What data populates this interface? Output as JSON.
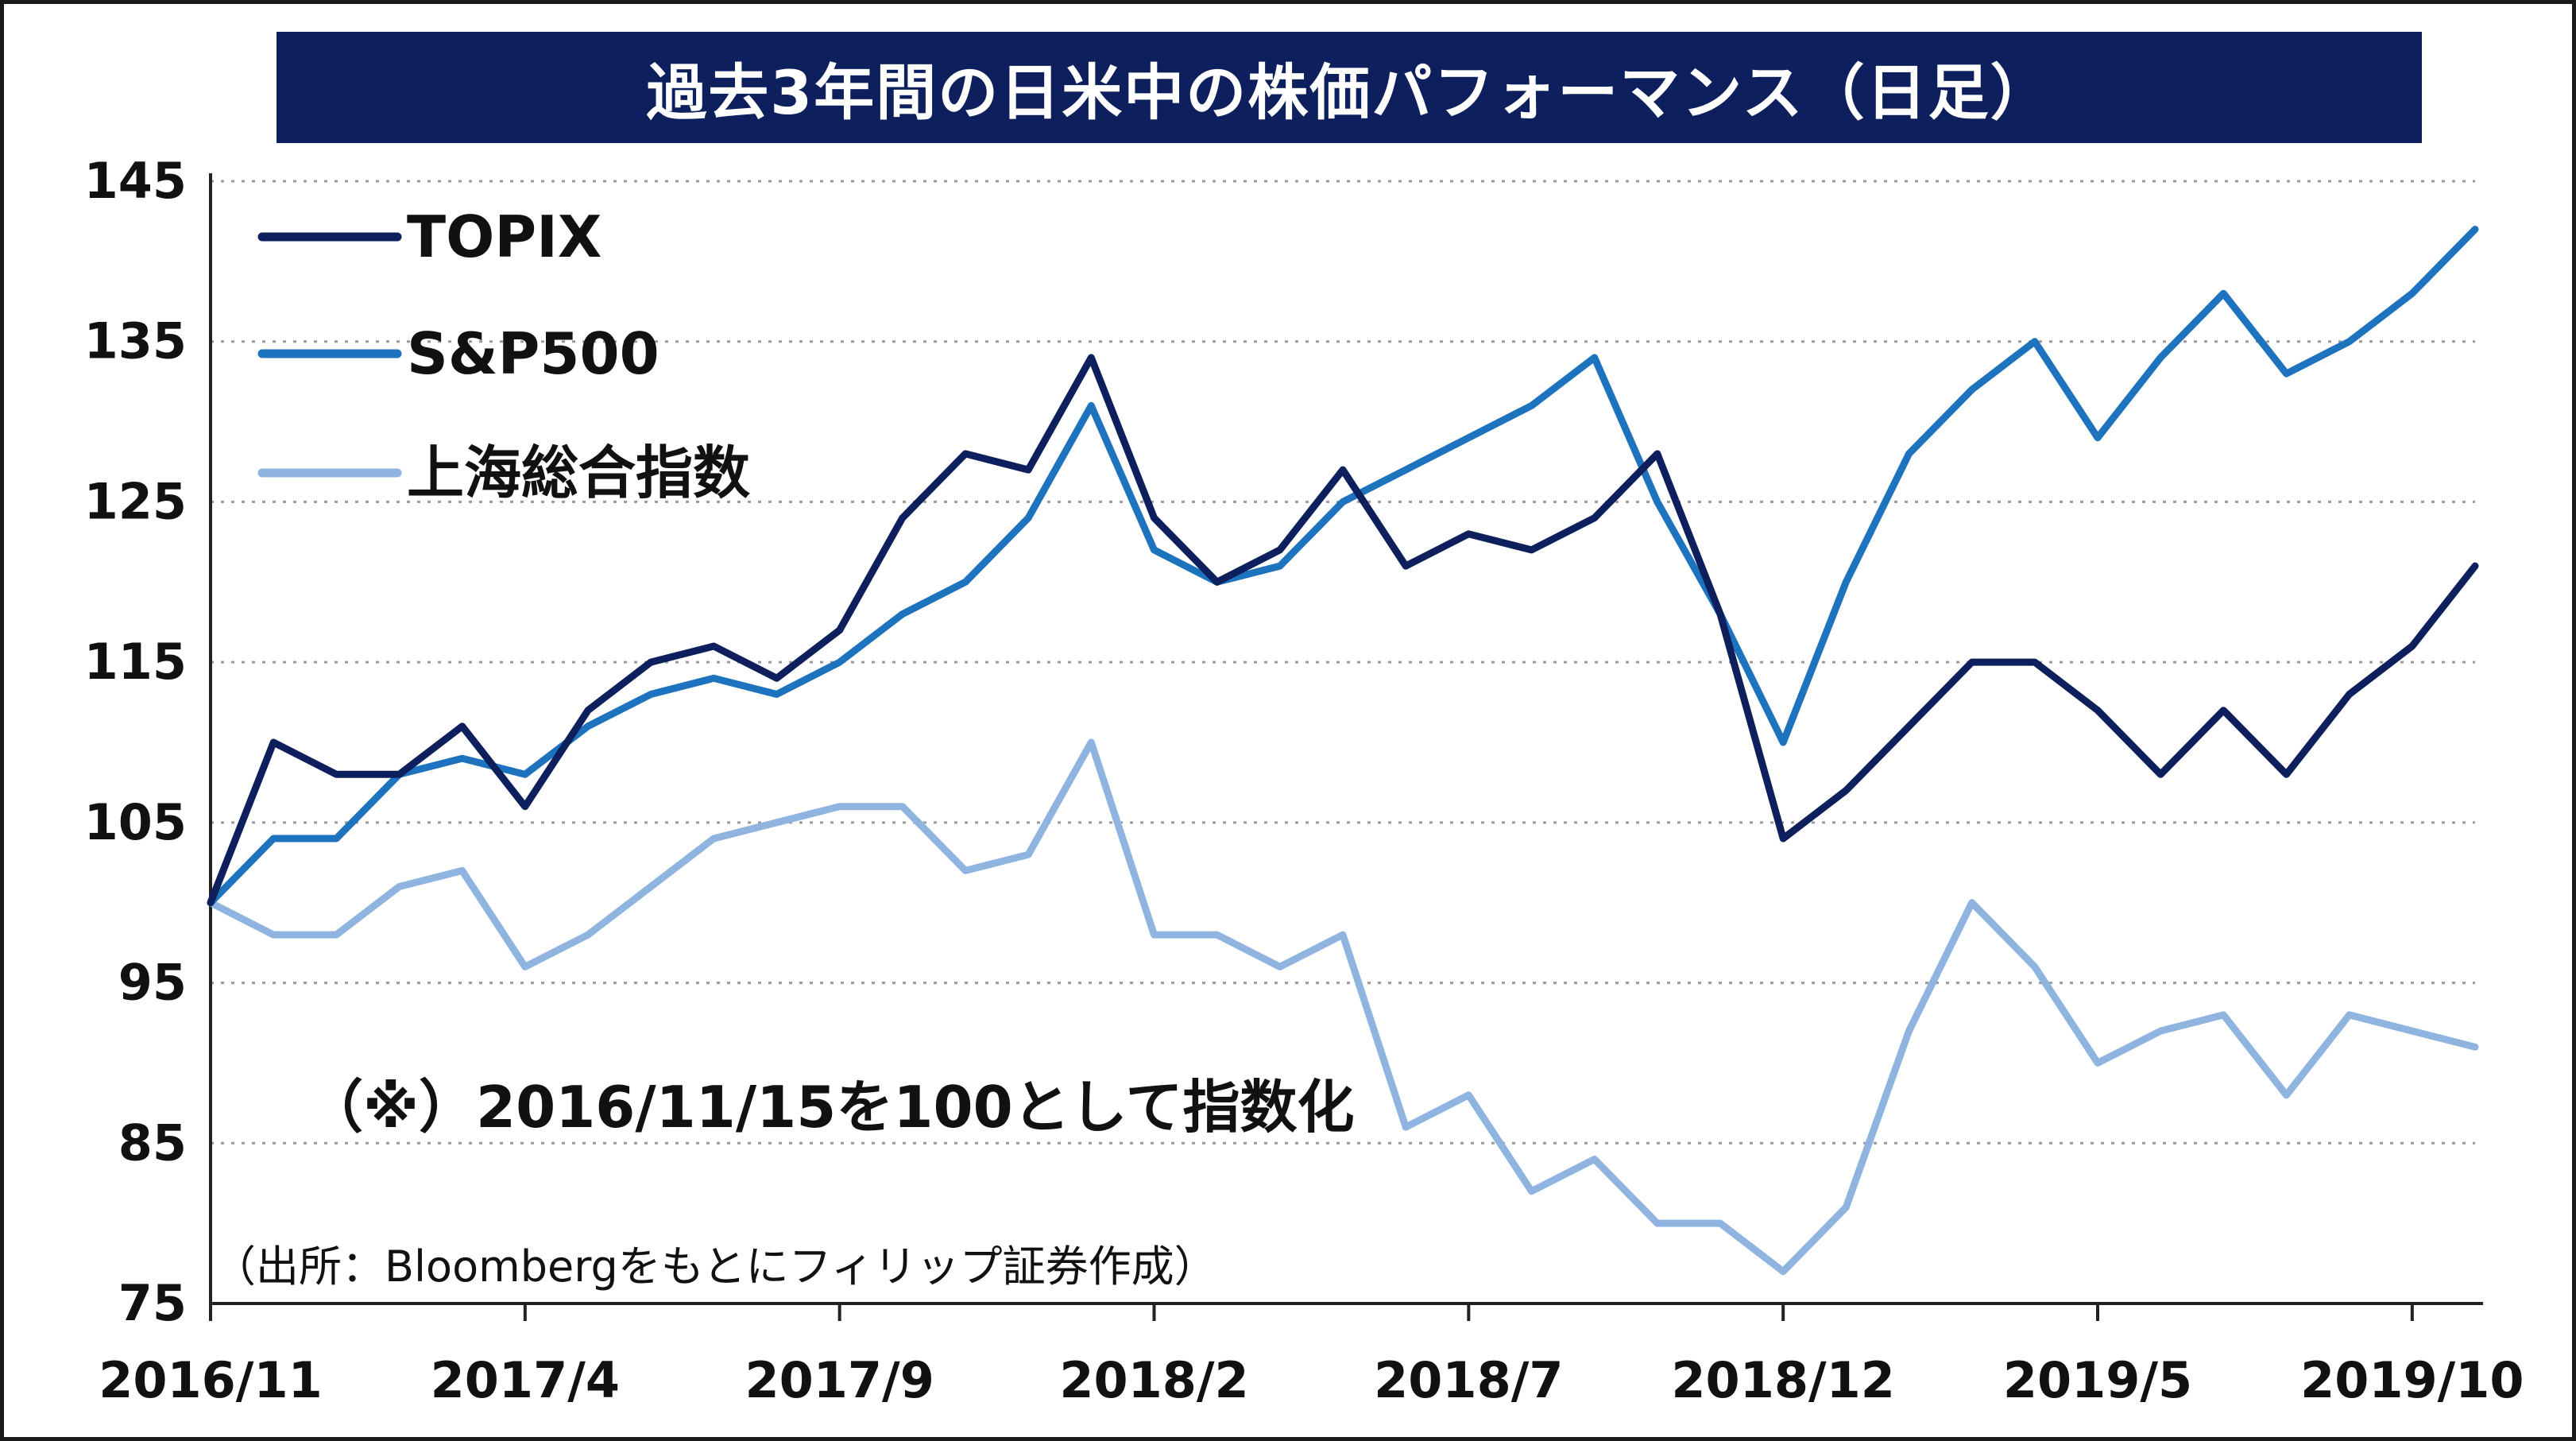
{
  "title": "過去3年間の日米中の株価パフォーマンス（日足）",
  "note": "（※）2016/11/15を100として指数化",
  "source": "（出所：Bloombergをもとにフィリップ証券作成）",
  "chart_data": {
    "type": "line",
    "title": "過去3年間の日米中の株価パフォーマンス（日足）",
    "xlabel": "",
    "ylabel": "",
    "ylim": [
      75,
      145
    ],
    "yticks": [
      "145",
      "135",
      "125",
      "115",
      "105",
      "95",
      "85",
      "75"
    ],
    "xticks": [
      "2016/11",
      "2017/4",
      "2017/9",
      "2018/2",
      "2018/7",
      "2018/12",
      "2019/5",
      "2019/10"
    ],
    "grid": "horizontal dotted",
    "legend_position": "top-left",
    "x": [
      "2016/11",
      "2016/12",
      "2017/1",
      "2017/2",
      "2017/3",
      "2017/4",
      "2017/5",
      "2017/6",
      "2017/7",
      "2017/8",
      "2017/9",
      "2017/10",
      "2017/11",
      "2017/12",
      "2018/1",
      "2018/2",
      "2018/3",
      "2018/4",
      "2018/5",
      "2018/6",
      "2018/7",
      "2018/8",
      "2018/9",
      "2018/10",
      "2018/11",
      "2018/12",
      "2019/1",
      "2019/2",
      "2019/3",
      "2019/4",
      "2019/5",
      "2019/6",
      "2019/7",
      "2019/8",
      "2019/9",
      "2019/10",
      "2019/11"
    ],
    "series": [
      {
        "name": "TOPIX",
        "color": "#0d1f5c",
        "values": [
          100,
          110,
          108,
          108,
          111,
          106,
          112,
          115,
          116,
          114,
          117,
          124,
          128,
          127,
          134,
          124,
          120,
          122,
          127,
          121,
          123,
          122,
          124,
          128,
          118,
          104,
          107,
          111,
          115,
          115,
          112,
          108,
          112,
          108,
          113,
          116,
          121
        ]
      },
      {
        "name": "S&P500",
        "color": "#1e73be",
        "values": [
          100,
          104,
          104,
          108,
          109,
          108,
          111,
          113,
          114,
          113,
          115,
          118,
          120,
          124,
          131,
          122,
          120,
          121,
          125,
          127,
          129,
          131,
          134,
          125,
          118,
          110,
          120,
          128,
          132,
          135,
          129,
          134,
          138,
          133,
          135,
          138,
          142
        ]
      },
      {
        "name": "上海総合指数",
        "color": "#8fb4e0",
        "values": [
          100,
          98,
          98,
          101,
          102,
          96,
          98,
          101,
          104,
          105,
          106,
          106,
          102,
          103,
          110,
          98,
          98,
          96,
          98,
          86,
          88,
          82,
          84,
          80,
          80,
          77,
          81,
          92,
          100,
          96,
          90,
          92,
          93,
          88,
          93,
          92,
          91
        ]
      }
    ]
  }
}
